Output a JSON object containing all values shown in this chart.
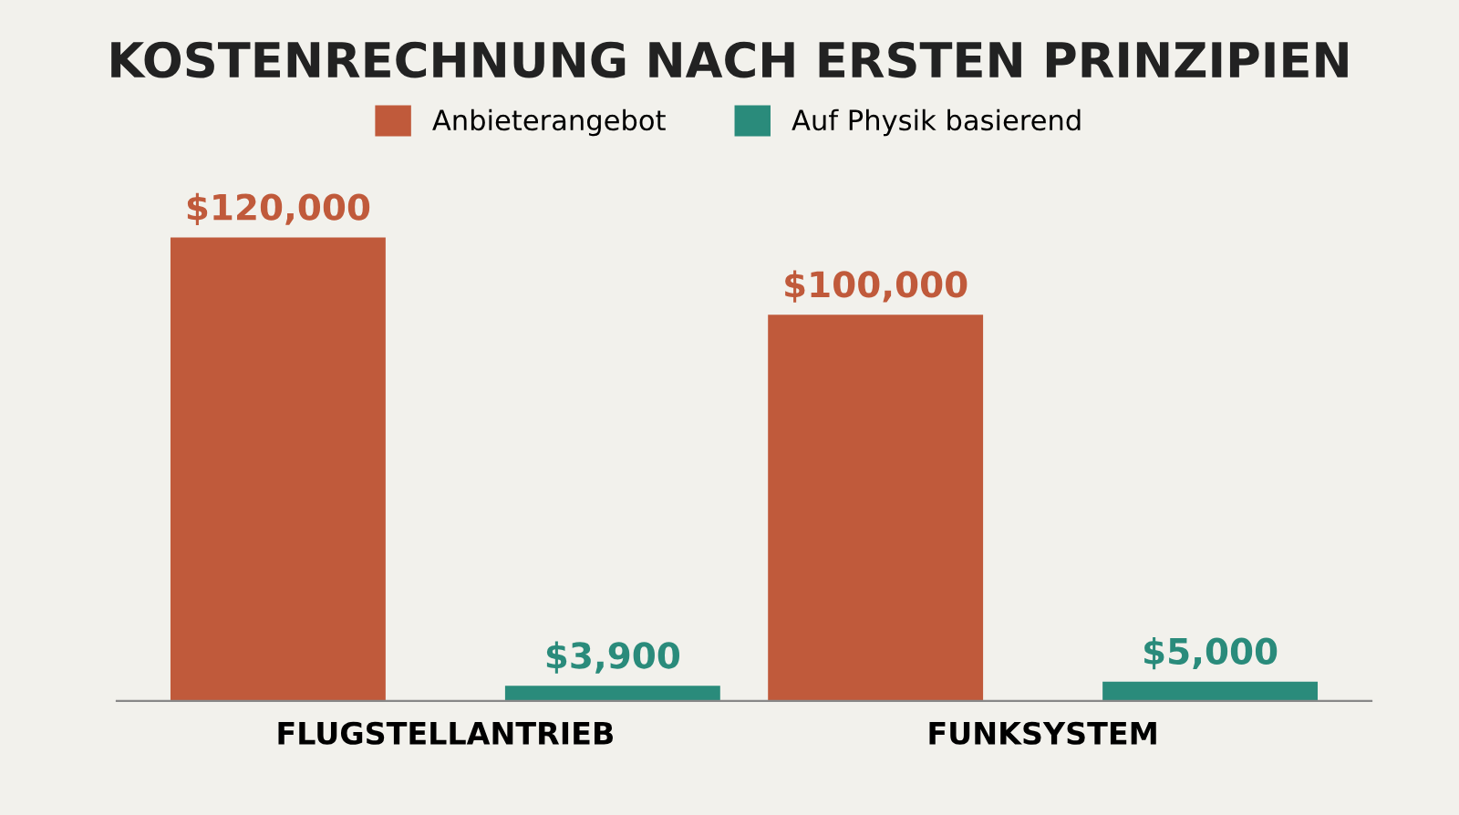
{
  "chart_data": {
    "type": "bar",
    "title": "KOSTENRECHNUNG NACH ERSTEN PRINZIPIEN",
    "categories": [
      "FLUGSTELLANTRIEB",
      "FUNKSYSTEM"
    ],
    "series": [
      {
        "name": "Anbieterangebot",
        "color": "#c05a3b",
        "values": [
          120000,
          100000
        ],
        "value_labels": [
          "$120,000",
          "$100,000"
        ]
      },
      {
        "name": "Auf Physik basierend",
        "color": "#2a8b7b",
        "values": [
          3900,
          5000
        ],
        "value_labels": [
          "$3,900",
          "$5,000"
        ]
      }
    ],
    "legend": "top",
    "grid": false,
    "tick_labels": "x"
  }
}
